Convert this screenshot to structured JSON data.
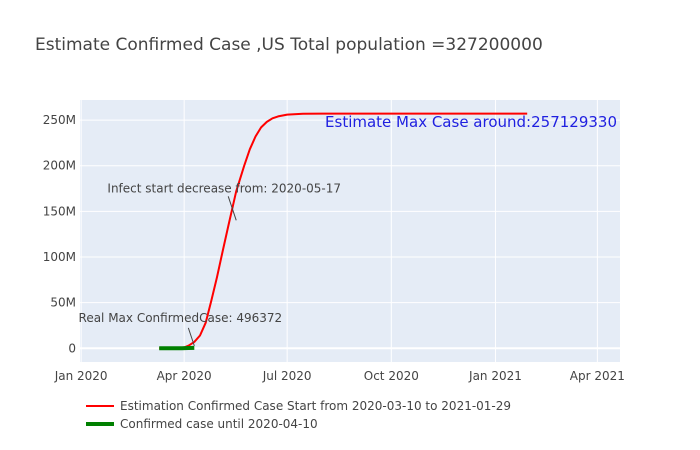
{
  "chart_data": {
    "type": "line",
    "title": "Estimate Confirmed Case ,US Total population =327200000",
    "xlabel": "",
    "ylabel": "",
    "x_range": [
      "2019-12-31",
      "2021-04-21"
    ],
    "y_range": [
      -15000000,
      272000000
    ],
    "grid": true,
    "legend_position": "bottom-left",
    "x_ticks": [
      {
        "date": "2020-01-01",
        "label": "Jan 2020"
      },
      {
        "date": "2020-04-01",
        "label": "Apr 2020"
      },
      {
        "date": "2020-07-01",
        "label": "Jul 2020"
      },
      {
        "date": "2020-10-01",
        "label": "Oct 2020"
      },
      {
        "date": "2021-01-01",
        "label": "Jan 2021"
      },
      {
        "date": "2021-04-01",
        "label": "Apr 2021"
      }
    ],
    "y_ticks": [
      {
        "value": 0,
        "label": "0"
      },
      {
        "value": 50000000,
        "label": "50M"
      },
      {
        "value": 100000000,
        "label": "100M"
      },
      {
        "value": 150000000,
        "label": "150M"
      },
      {
        "value": 200000000,
        "label": "200M"
      },
      {
        "value": 250000000,
        "label": "250M"
      }
    ],
    "series": [
      {
        "name": "Estimation Confirmed Case Start from 2020-03-10 to 2021-01-29",
        "color": "#ff0000",
        "x": [
          "2020-03-10",
          "2020-03-25",
          "2020-04-01",
          "2020-04-05",
          "2020-04-10",
          "2020-04-15",
          "2020-04-20",
          "2020-04-25",
          "2020-04-30",
          "2020-05-05",
          "2020-05-10",
          "2020-05-17",
          "2020-05-24",
          "2020-05-29",
          "2020-06-03",
          "2020-06-08",
          "2020-06-13",
          "2020-06-18",
          "2020-06-23",
          "2020-07-01",
          "2020-07-15",
          "2020-08-01",
          "2020-10-01",
          "2021-01-29"
        ],
        "y": [
          0,
          200000,
          1000000,
          3000000,
          7000000,
          14000000,
          28000000,
          52000000,
          78000000,
          106000000,
          134000000,
          172000000,
          200000000,
          218000000,
          232000000,
          242000000,
          248000000,
          252000000,
          254000000,
          256000000,
          257000000,
          257100000,
          257129330,
          257129330
        ]
      },
      {
        "name": "Confirmed case until 2020-04-10",
        "color": "#008000",
        "x": [
          "2020-03-10",
          "2020-03-20",
          "2020-03-30",
          "2020-04-05",
          "2020-04-10"
        ],
        "y": [
          0,
          15000,
          150000,
          330000,
          496372
        ]
      }
    ],
    "annotations": [
      {
        "text": "Infect start decrease from: 2020-05-17",
        "date": "2020-05-17",
        "value": 138000000
      },
      {
        "text": "Real Max ConfirmedCase: 496372",
        "date": "2020-04-10",
        "value": 496372
      },
      {
        "text": "Estimate Max Case around:257129330"
      }
    ]
  }
}
